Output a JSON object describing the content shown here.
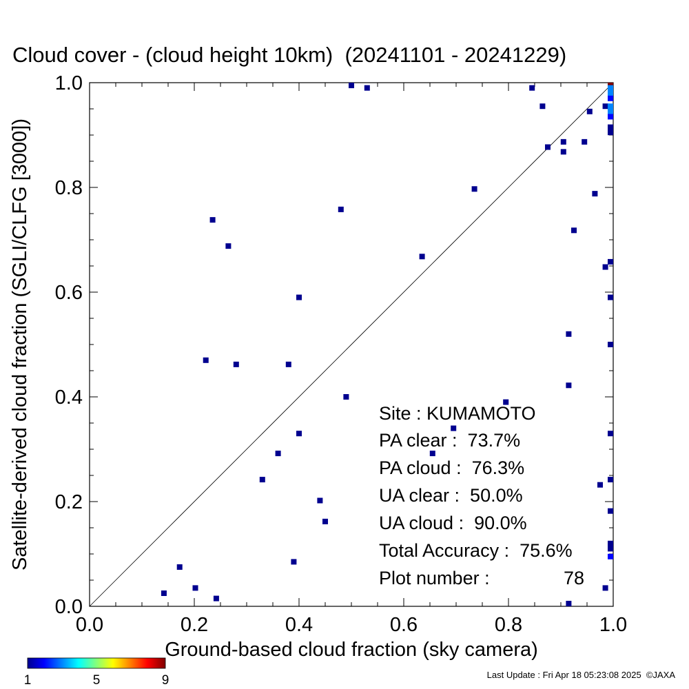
{
  "chart_data": {
    "type": "scatter",
    "title": "Cloud cover - (cloud height 10km)  (20241101 - 20241229)",
    "xlabel": "Ground-based cloud fraction (sky camera)",
    "ylabel": "Satellite-derived cloud fraction (SGLI/CLFG [3000])",
    "xlim": [
      0.0,
      1.0
    ],
    "ylim": [
      0.0,
      1.0
    ],
    "x_ticks": [
      "0.0",
      "0.2",
      "0.4",
      "0.6",
      "0.8",
      "1.0"
    ],
    "y_ticks": [
      "0.0",
      "0.2",
      "0.4",
      "0.6",
      "0.8",
      "1.0"
    ],
    "grid": false,
    "reference_line": "y = x",
    "colorbar": {
      "min": 1,
      "max": 9,
      "ticks": [
        "1",
        "5",
        "9"
      ],
      "colors": [
        "#00008f",
        "#0000ff",
        "#00ffff",
        "#ffff00",
        "#ff0000",
        "#800000"
      ]
    },
    "points": [
      {
        "x": 0.5,
        "y": 1.0,
        "c": 1
      },
      {
        "x": 0.53,
        "y": 0.99,
        "c": 1
      },
      {
        "x": 0.845,
        "y": 0.99,
        "c": 1
      },
      {
        "x": 0.865,
        "y": 0.955,
        "c": 1
      },
      {
        "x": 0.955,
        "y": 0.945,
        "c": 1
      },
      {
        "x": 0.985,
        "y": 0.955,
        "c": 1
      },
      {
        "x": 0.875,
        "y": 0.877,
        "c": 1
      },
      {
        "x": 0.905,
        "y": 0.887,
        "c": 1
      },
      {
        "x": 0.905,
        "y": 0.868,
        "c": 1
      },
      {
        "x": 0.945,
        "y": 0.887,
        "c": 1
      },
      {
        "x": 0.735,
        "y": 0.797,
        "c": 1
      },
      {
        "x": 0.965,
        "y": 0.788,
        "c": 1
      },
      {
        "x": 0.235,
        "y": 0.738,
        "c": 1
      },
      {
        "x": 0.48,
        "y": 0.758,
        "c": 1
      },
      {
        "x": 0.925,
        "y": 0.718,
        "c": 1
      },
      {
        "x": 0.265,
        "y": 0.688,
        "c": 1
      },
      {
        "x": 0.635,
        "y": 0.668,
        "c": 1
      },
      {
        "x": 0.985,
        "y": 0.648,
        "c": 1
      },
      {
        "x": 0.4,
        "y": 0.59,
        "c": 1
      },
      {
        "x": 0.915,
        "y": 0.52,
        "c": 1
      },
      {
        "x": 0.222,
        "y": 0.47,
        "c": 1
      },
      {
        "x": 0.28,
        "y": 0.462,
        "c": 1
      },
      {
        "x": 0.38,
        "y": 0.462,
        "c": 1
      },
      {
        "x": 0.915,
        "y": 0.422,
        "c": 1
      },
      {
        "x": 0.49,
        "y": 0.4,
        "c": 1
      },
      {
        "x": 0.795,
        "y": 0.39,
        "c": 1
      },
      {
        "x": 0.695,
        "y": 0.34,
        "c": 1
      },
      {
        "x": 0.4,
        "y": 0.33,
        "c": 1
      },
      {
        "x": 0.36,
        "y": 0.292,
        "c": 1
      },
      {
        "x": 0.655,
        "y": 0.292,
        "c": 1
      },
      {
        "x": 0.33,
        "y": 0.242,
        "c": 1
      },
      {
        "x": 0.975,
        "y": 0.232,
        "c": 1
      },
      {
        "x": 0.44,
        "y": 0.202,
        "c": 1
      },
      {
        "x": 0.45,
        "y": 0.162,
        "c": 1
      },
      {
        "x": 0.39,
        "y": 0.085,
        "c": 1
      },
      {
        "x": 0.172,
        "y": 0.075,
        "c": 1
      },
      {
        "x": 0.202,
        "y": 0.035,
        "c": 1
      },
      {
        "x": 0.985,
        "y": 0.035,
        "c": 1
      },
      {
        "x": 0.142,
        "y": 0.025,
        "c": 1
      },
      {
        "x": 0.242,
        "y": 0.015,
        "c": 1
      },
      {
        "x": 0.915,
        "y": 0.005,
        "c": 1
      },
      {
        "x": 1.0,
        "y": 1.0,
        "c": 9
      },
      {
        "x": 1.0,
        "y": 0.99,
        "c": 3
      },
      {
        "x": 1.0,
        "y": 0.98,
        "c": 3
      },
      {
        "x": 1.0,
        "y": 0.97,
        "c": 2
      },
      {
        "x": 1.0,
        "y": 0.955,
        "c": 3
      },
      {
        "x": 1.0,
        "y": 0.945,
        "c": 3
      },
      {
        "x": 1.0,
        "y": 0.935,
        "c": 2
      },
      {
        "x": 1.0,
        "y": 0.915,
        "c": 1
      },
      {
        "x": 1.0,
        "y": 0.905,
        "c": 1
      },
      {
        "x": 1.0,
        "y": 0.658,
        "c": 1
      },
      {
        "x": 1.0,
        "y": 0.59,
        "c": 1
      },
      {
        "x": 1.0,
        "y": 0.5,
        "c": 1
      },
      {
        "x": 1.0,
        "y": 0.33,
        "c": 1
      },
      {
        "x": 1.0,
        "y": 0.242,
        "c": 1
      },
      {
        "x": 1.0,
        "y": 0.182,
        "c": 1
      },
      {
        "x": 1.0,
        "y": 0.12,
        "c": 1
      },
      {
        "x": 1.0,
        "y": 0.11,
        "c": 1
      },
      {
        "x": 1.0,
        "y": 0.095,
        "c": 2
      }
    ]
  },
  "stats": {
    "site": "Site : KUMAMOTO",
    "pa_clear": "PA clear :  73.7%",
    "pa_cloud": "PA cloud :  76.3%",
    "ua_clear": "UA clear :  50.0%",
    "ua_cloud": "UA cloud :  90.0%",
    "total_accuracy": "Total Accuracy :  75.6%",
    "plot_number_label": "Plot number :",
    "plot_number_value": "78"
  },
  "footer": {
    "last_update": "Last Update : Fri Apr 18 05:23:08 2025  ©JAXA"
  }
}
